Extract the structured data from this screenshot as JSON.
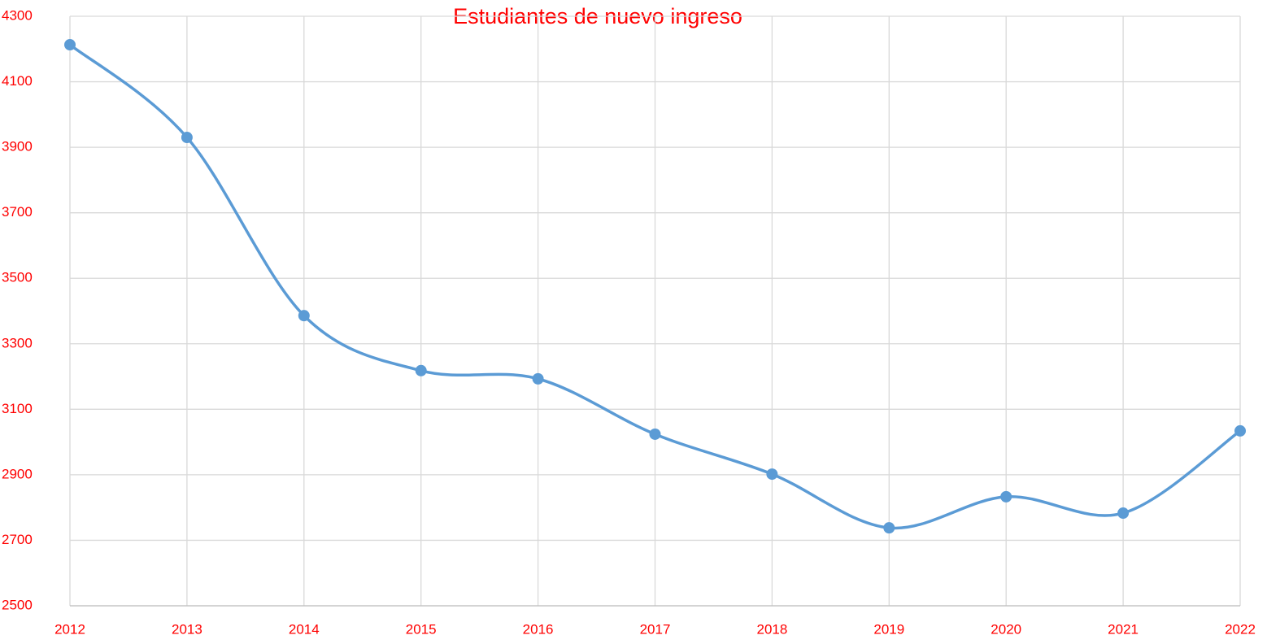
{
  "chart_data": {
    "type": "line",
    "title": "Estudiantes de nuevo ingreso",
    "x": [
      2012,
      2013,
      2014,
      2015,
      2016,
      2017,
      2018,
      2019,
      2020,
      2021,
      2022
    ],
    "series": [
      {
        "name": "Estudiantes de nuevo ingreso",
        "color": "#5b9bd5",
        "values": [
          4213,
          3930,
          3386,
          3218,
          3193,
          3024,
          2902,
          2738,
          2833,
          2783,
          3034
        ]
      }
    ],
    "xlim": [
      2012,
      2022
    ],
    "xticks": [
      2012,
      2013,
      2014,
      2015,
      2016,
      2017,
      2018,
      2019,
      2020,
      2021,
      2022
    ],
    "ylim": [
      2500,
      4300
    ],
    "yticks": [
      2500,
      2700,
      2900,
      3100,
      3300,
      3500,
      3700,
      3900,
      4100,
      4300
    ],
    "grid": true,
    "smooth": true,
    "label_color": "#ff0000"
  }
}
